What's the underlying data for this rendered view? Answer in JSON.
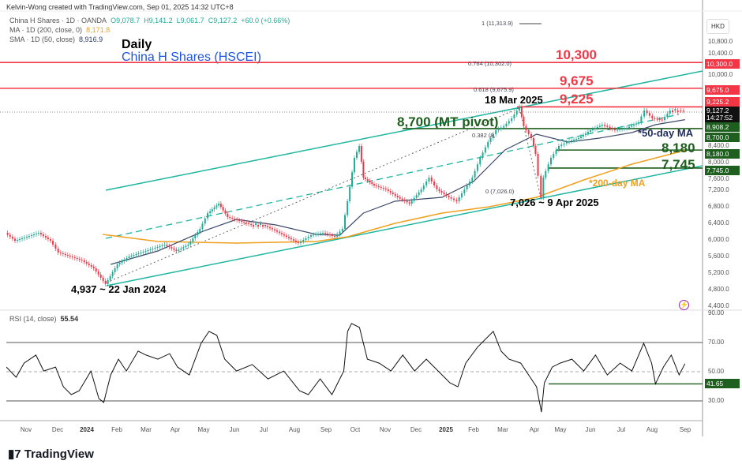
{
  "header": {
    "credit": "Kelvin-Wong created with TradingView.com, Sep 01, 2025 14:32 UTC+8",
    "symbol": "China H Shares · 1D · OANDA",
    "open": "O9,078.7",
    "high": "H9,141.2",
    "low": "L9,061.7",
    "close": "C9,127.2",
    "change": "+60.0 (+0.66%)",
    "ma_label": "MA · 1D (200, close, 0)",
    "ma_value": "8,171.8",
    "sma_label": "SMA · 1D (50, close)",
    "sma_value": "8,916.9"
  },
  "titles": {
    "period": "Daily",
    "name": "China H Shares (HSCEI)"
  },
  "currency": "HKD",
  "colors": {
    "up": "#22ab94",
    "down": "#f23645",
    "ma200": "#f0a01e",
    "sma50": "#3d4a6b",
    "channel": "#1fb5a0",
    "resistance": "#f23645",
    "support": "#1e5e1e"
  },
  "chart_data": [
    {
      "type": "candlestick-line",
      "title": "China H Shares (HSCEI)",
      "ylabel": "HKD",
      "ylim": [
        4400,
        10800
      ],
      "yticks": [
        "10,800.0",
        "10,400.0",
        "10,000.0",
        "8,400.0",
        "8,000.0",
        "7,600.0",
        "7,200.0",
        "6,800.0",
        "6,400.0",
        "6,000.0",
        "5,600.0",
        "5,200.0",
        "4,800.0",
        "4,400.0"
      ],
      "xticks": [
        "Nov",
        "Dec",
        "2024",
        "Feb",
        "Mar",
        "Apr",
        "May",
        "Jun",
        "Jul",
        "Aug",
        "Sep",
        "Oct",
        "Nov",
        "Dec",
        "2025",
        "Feb",
        "Mar",
        "Apr",
        "May",
        "Jun",
        "Jul",
        "Aug",
        "Sep"
      ],
      "series": [
        {
          "name": "China H Shares",
          "points": [
            [
              "2023-10-12",
              6176
            ],
            [
              "2023-10-22",
              5985
            ],
            [
              "2023-11-03",
              6081
            ],
            [
              "2023-11-15",
              6176
            ],
            [
              "2023-11-27",
              5985
            ],
            [
              "2023-12-05",
              5699
            ],
            [
              "2023-12-17",
              5603
            ],
            [
              "2023-12-29",
              5508
            ],
            [
              "2024-01-10",
              5317
            ],
            [
              "2024-01-22",
              4937
            ],
            [
              "2024-02-03",
              5412
            ],
            [
              "2024-02-15",
              5603
            ],
            [
              "2024-02-27",
              5699
            ],
            [
              "2024-03-10",
              5794
            ],
            [
              "2024-03-22",
              5890
            ],
            [
              "2024-04-03",
              5737
            ],
            [
              "2024-04-15",
              5890
            ],
            [
              "2024-04-27",
              6272
            ],
            [
              "2024-05-05",
              6654
            ],
            [
              "2024-05-16",
              6883
            ],
            [
              "2024-05-25",
              6558
            ],
            [
              "2024-06-06",
              6463
            ],
            [
              "2024-06-18",
              6367
            ],
            [
              "2024-06-30",
              6367
            ],
            [
              "2024-07-12",
              6234
            ],
            [
              "2024-07-24",
              6081
            ],
            [
              "2024-08-05",
              5928
            ],
            [
              "2024-08-18",
              6119
            ],
            [
              "2024-08-30",
              6176
            ],
            [
              "2024-09-11",
              6081
            ],
            [
              "2024-09-19",
              6272
            ],
            [
              "2024-09-24",
              6941
            ],
            [
              "2024-10-01",
              7992
            ],
            [
              "2024-10-06",
              8278
            ],
            [
              "2024-10-10",
              7514
            ],
            [
              "2024-10-21",
              7323
            ],
            [
              "2024-11-02",
              7227
            ],
            [
              "2024-11-14",
              7036
            ],
            [
              "2024-11-26",
              6883
            ],
            [
              "2024-12-08",
              7227
            ],
            [
              "2024-12-16",
              7514
            ],
            [
              "2024-12-24",
              7227
            ],
            [
              "2025-01-05",
              7036
            ],
            [
              "2025-01-13",
              6941
            ],
            [
              "2025-01-21",
              7227
            ],
            [
              "2025-01-29",
              7514
            ],
            [
              "2025-02-06",
              7992
            ],
            [
              "2025-02-14",
              8374
            ],
            [
              "2025-02-22",
              8660
            ],
            [
              "2025-03-02",
              8756
            ],
            [
              "2025-03-10",
              8947
            ],
            [
              "2025-03-18",
              9225
            ],
            [
              "2025-03-22",
              8756
            ],
            [
              "2025-03-30",
              8469
            ],
            [
              "2025-04-03",
              8087
            ],
            [
              "2025-04-09",
              7026
            ],
            [
              "2025-04-11",
              7514
            ],
            [
              "2025-04-19",
              7992
            ],
            [
              "2025-04-27",
              8278
            ],
            [
              "2025-05-05",
              8374
            ],
            [
              "2025-05-17",
              8469
            ],
            [
              "2025-05-29",
              8660
            ],
            [
              "2025-06-10",
              8794
            ],
            [
              "2025-06-23",
              8660
            ],
            [
              "2025-07-05",
              8717
            ],
            [
              "2025-07-17",
              8851
            ],
            [
              "2025-07-23",
              9138
            ],
            [
              "2025-07-31",
              8947
            ],
            [
              "2025-08-10",
              8908
            ],
            [
              "2025-08-18",
              9138
            ],
            [
              "2025-08-26",
              9138
            ],
            [
              "2025-09-01",
              9127
            ]
          ]
        },
        {
          "name": "MA 200",
          "points": [
            [
              "2024-01-18",
              6138
            ],
            [
              "2024-03-14",
              5966
            ],
            [
              "2024-06-02",
              5928
            ],
            [
              "2024-08-22",
              5966
            ],
            [
              "2024-09-23",
              6081
            ],
            [
              "2024-11-10",
              6406
            ],
            [
              "2024-12-28",
              6654
            ],
            [
              "2025-02-14",
              6807
            ],
            [
              "2025-04-03",
              7036
            ],
            [
              "2025-05-21",
              7456
            ],
            [
              "2025-07-09",
              7839
            ],
            [
              "2025-09-01",
              8172
            ]
          ]
        },
        {
          "name": "SMA 50",
          "points": [
            [
              "2024-01-26",
              5412
            ],
            [
              "2024-03-14",
              5737
            ],
            [
              "2024-05-01",
              6234
            ],
            [
              "2024-06-02",
              6501
            ],
            [
              "2024-07-12",
              6367
            ],
            [
              "2024-08-22",
              6138
            ],
            [
              "2024-09-15",
              6119
            ],
            [
              "2024-10-09",
              6654
            ],
            [
              "2024-11-10",
              6941
            ],
            [
              "2024-12-28",
              7036
            ],
            [
              "2025-01-29",
              7418
            ],
            [
              "2025-03-02",
              8183
            ],
            [
              "2025-04-03",
              8565
            ],
            [
              "2025-05-05",
              8374
            ],
            [
              "2025-06-06",
              8469
            ],
            [
              "2025-07-09",
              8603
            ],
            [
              "2025-08-02",
              8794
            ],
            [
              "2025-09-01",
              8917
            ]
          ]
        }
      ],
      "levels": [
        {
          "value": 10300,
          "label": "10,300",
          "tag": "10,300.0",
          "kind": "resistance"
        },
        {
          "value": 9675,
          "label": "9,675",
          "tag": "9,675.0",
          "kind": "resistance"
        },
        {
          "value": 9225,
          "label": "9,225",
          "tag": "9,225.2",
          "kind": "resistance"
        },
        {
          "value": 8700,
          "label": "8,700 (MT pivot)",
          "tag": "8,700.0",
          "kind": "support"
        },
        {
          "value": 8180,
          "label": "8,180",
          "tag": "8,180.0",
          "kind": "support"
        },
        {
          "value": 7745,
          "label": "7,745",
          "tag": "7,745.0",
          "kind": "support"
        }
      ],
      "last_price": {
        "value": "9,127.2",
        "countdown": "14:27:52",
        "sma_tag": "8,908.2"
      },
      "fib": [
        {
          "label": "1 (11,313.9)"
        },
        {
          "label": "0.764 (10,302.0)"
        },
        {
          "label": "0.618 (9,675.9)"
        },
        {
          "label": "0.382 (8,"
        },
        {
          "label": "0 (7,026.0)"
        }
      ],
      "annotations": {
        "high": "18 Mar 2025",
        "low_apr": "7,026 ~ 9 Apr 2025",
        "low_jan": "4,937 ~ 22 Jan 2024",
        "sma50": "*50-day MA",
        "ma200": "*200-day MA"
      }
    },
    {
      "type": "line",
      "title": "RSI (14, close)",
      "value": "55.54",
      "ylim": [
        20,
        90
      ],
      "yticks": [
        "90.00",
        "70.00",
        "50.00",
        "30.00"
      ],
      "bands": [
        70,
        50,
        30
      ],
      "support": {
        "value": 41.65,
        "tag": "41.65"
      },
      "points": [
        [
          "2023-10-12",
          53.2
        ],
        [
          "2023-10-22",
          46.2
        ],
        [
          "2023-10-30",
          55.9
        ],
        [
          "2023-11-11",
          61.4
        ],
        [
          "2023-11-19",
          50.5
        ],
        [
          "2023-12-01",
          53.2
        ],
        [
          "2023-12-09",
          39.7
        ],
        [
          "2023-12-17",
          34.3
        ],
        [
          "2023-12-25",
          37.0
        ],
        [
          "2024-01-06",
          50.5
        ],
        [
          "2024-01-14",
          31.6
        ],
        [
          "2024-01-19",
          28.9
        ],
        [
          "2024-01-26",
          47.8
        ],
        [
          "2024-02-03",
          58.6
        ],
        [
          "2024-02-11",
          50.5
        ],
        [
          "2024-02-23",
          64.1
        ],
        [
          "2024-03-02",
          61.4
        ],
        [
          "2024-03-14",
          58.6
        ],
        [
          "2024-03-26",
          62.4
        ],
        [
          "2024-04-03",
          53.2
        ],
        [
          "2024-04-15",
          47.8
        ],
        [
          "2024-04-27",
          69.5
        ],
        [
          "2024-05-05",
          77.6
        ],
        [
          "2024-05-13",
          74.9
        ],
        [
          "2024-05-21",
          58.6
        ],
        [
          "2024-06-02",
          50.5
        ],
        [
          "2024-06-18",
          54.9
        ],
        [
          "2024-07-04",
          45.1
        ],
        [
          "2024-07-20",
          50.5
        ],
        [
          "2024-08-05",
          37.0
        ],
        [
          "2024-08-14",
          34.3
        ],
        [
          "2024-08-26",
          45.1
        ],
        [
          "2024-09-07",
          34.3
        ],
        [
          "2024-09-19",
          50.5
        ],
        [
          "2024-09-23",
          77.6
        ],
        [
          "2024-09-27",
          83.0
        ],
        [
          "2024-10-05",
          80.3
        ],
        [
          "2024-10-13",
          58.6
        ],
        [
          "2024-10-25",
          55.9
        ],
        [
          "2024-11-06",
          50.5
        ],
        [
          "2024-11-18",
          61.4
        ],
        [
          "2024-11-30",
          50.5
        ],
        [
          "2024-12-12",
          58.6
        ],
        [
          "2024-12-24",
          50.5
        ],
        [
          "2025-01-05",
          42.4
        ],
        [
          "2025-01-13",
          39.7
        ],
        [
          "2025-01-21",
          55.9
        ],
        [
          "2025-02-02",
          66.8
        ],
        [
          "2025-02-10",
          72.2
        ],
        [
          "2025-02-18",
          77.6
        ],
        [
          "2025-02-26",
          64.1
        ],
        [
          "2025-03-06",
          58.6
        ],
        [
          "2025-03-18",
          55.9
        ],
        [
          "2025-03-26",
          47.8
        ],
        [
          "2025-04-03",
          39.7
        ],
        [
          "2025-04-08",
          22.4
        ],
        [
          "2025-04-11",
          42.4
        ],
        [
          "2025-04-19",
          53.2
        ],
        [
          "2025-04-27",
          55.9
        ],
        [
          "2025-05-09",
          58.6
        ],
        [
          "2025-05-21",
          50.5
        ],
        [
          "2025-06-02",
          61.4
        ],
        [
          "2025-06-14",
          47.8
        ],
        [
          "2025-06-27",
          55.9
        ],
        [
          "2025-07-09",
          50.5
        ],
        [
          "2025-07-21",
          69.5
        ],
        [
          "2025-07-29",
          55.9
        ],
        [
          "2025-08-02",
          41.65
        ],
        [
          "2025-08-10",
          53.2
        ],
        [
          "2025-08-18",
          61.4
        ],
        [
          "2025-08-26",
          47.8
        ],
        [
          "2025-09-01",
          55.54
        ]
      ]
    }
  ],
  "footer": {
    "brand": "TradingView"
  }
}
